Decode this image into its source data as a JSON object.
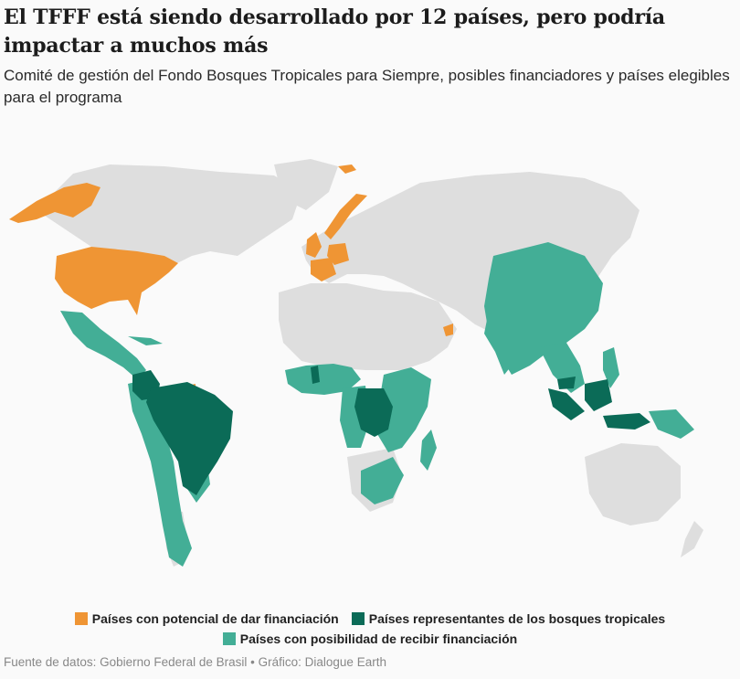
{
  "title": "El TFFF está siendo desarrollado por 12 países, pero podría impactar a muchos más",
  "subtitle": "Comité de gestión del Fondo Bosques Tropicales para Siempre, posibles financiadores y países elegibles para el programa",
  "colors": {
    "land": "#dedede",
    "funders": "#ef9534",
    "representatives": "#0b6b57",
    "recipients": "#43ae96"
  },
  "legend": {
    "funders": "Países con potencial de dar financiación",
    "representatives": "Países representantes de los bosques tropicales",
    "recipients": "Países con posibilidad de recibir financiación"
  },
  "source": "Fuente de datos: Gobierno Federal de Brasil • Gráfico: Dialogue Earth"
}
